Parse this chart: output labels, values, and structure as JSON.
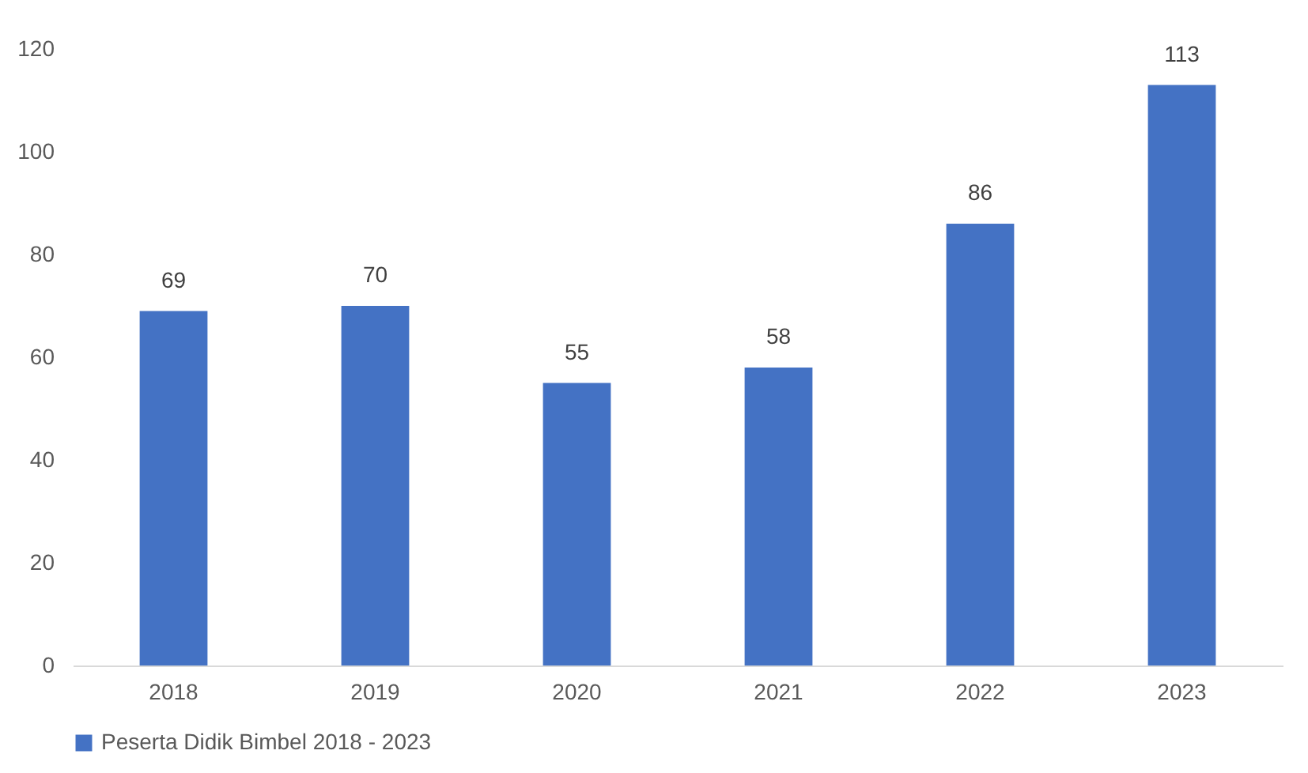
{
  "chart_data": {
    "type": "bar",
    "categories": [
      "2018",
      "2019",
      "2020",
      "2021",
      "2022",
      "2023"
    ],
    "series": [
      {
        "name": "Peserta Didik Bimbel 2018 - 2023",
        "color": "#4472c4",
        "values": [
          69,
          70,
          55,
          58,
          86,
          113
        ]
      }
    ],
    "ylim": [
      0,
      120
    ],
    "yticks": [
      0,
      20,
      40,
      60,
      80,
      100,
      120
    ],
    "grid": false,
    "data_labels": true,
    "legend": "bottom"
  }
}
